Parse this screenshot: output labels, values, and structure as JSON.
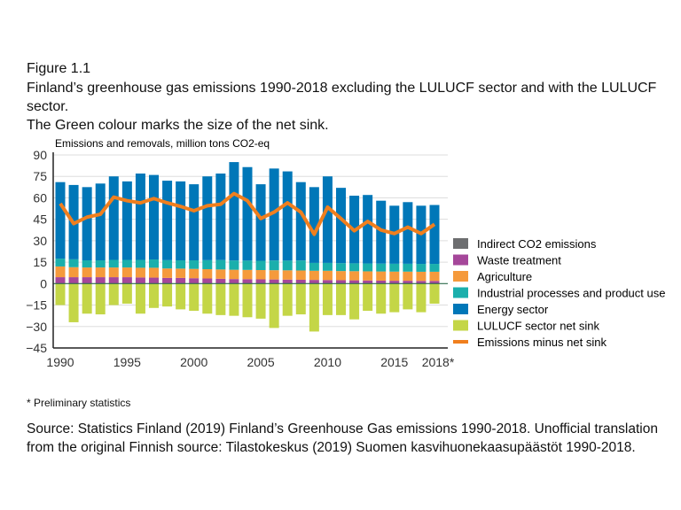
{
  "figure_label": "Figure 1.1",
  "title_line1": "Finland’s greenhouse gas emissions 1990-2018 excluding the LULUCF sector and with the LULUCF sector.",
  "title_line2": "The Green colour marks the size of the net sink.",
  "footnote": "* Preliminary statistics",
  "source": "Source: Statistics Finland (2019) Finland’s Greenhouse Gas emissions 1990-2018. Unofficial translation from the original Finnish source: Tilastokeskus (2019) Suomen kasvihuonekaasupäästöt 1990-2018.",
  "chart_data": {
    "type": "bar",
    "ylabel": "Emissions and removals, million tons CO2-eq",
    "ylim": [
      -45,
      90
    ],
    "yticks": [
      90,
      75,
      60,
      45,
      30,
      15,
      0,
      -15,
      -30,
      -45
    ],
    "ytick_labels": [
      "90",
      "75",
      "60",
      "45",
      "30",
      "15",
      "0",
      "−15",
      "−30",
      "−45"
    ],
    "categories": [
      1990,
      1991,
      1992,
      1993,
      1994,
      1995,
      1996,
      1997,
      1998,
      1999,
      2000,
      2001,
      2002,
      2003,
      2004,
      2005,
      2006,
      2007,
      2008,
      2009,
      2010,
      2011,
      2012,
      2013,
      2014,
      2015,
      2016,
      2017,
      2018
    ],
    "xtick_labels": [
      "1990",
      "1995",
      "2000",
      "2005",
      "2010",
      "2015",
      "2018*"
    ],
    "xtick_index": [
      0,
      5,
      10,
      15,
      20,
      25,
      28
    ],
    "grid": true,
    "legend_position": "right",
    "series": [
      {
        "name": "Waste treatment",
        "color": "#a5479a",
        "values": [
          4.5,
          4.5,
          4.5,
          4.5,
          4.5,
          4.5,
          4.3,
          4.2,
          4,
          4,
          3.8,
          3.6,
          3.4,
          3.2,
          3.1,
          3,
          2.9,
          2.8,
          2.7,
          2.6,
          2.5,
          2.4,
          2.3,
          2.2,
          2.1,
          2.0,
          2.0,
          1.9,
          1.9
        ]
      },
      {
        "name": "Agriculture",
        "color": "#f59a3c",
        "values": [
          7.5,
          7,
          6.8,
          6.8,
          6.8,
          6.8,
          6.8,
          6.9,
          6.6,
          6.5,
          6.5,
          6.5,
          6.5,
          6.5,
          6.5,
          6.5,
          6.5,
          6.5,
          6.5,
          6.4,
          6.5,
          6.4,
          6.4,
          6.4,
          6.4,
          6.4,
          6.4,
          6.4,
          6.4
        ]
      },
      {
        "name": "Industrial processes and product use",
        "color": "#1aafac",
        "values": [
          5.5,
          5.5,
          5,
          5,
          5.3,
          5.3,
          5.5,
          5.8,
          5.8,
          5.8,
          6,
          6.3,
          6.6,
          6.5,
          6.5,
          6.5,
          6.8,
          6.8,
          7,
          5.5,
          5.5,
          5.5,
          5.5,
          5.5,
          5.5,
          5.5,
          5.5,
          5.5,
          5.5
        ]
      },
      {
        "name": "Energy sector",
        "color": "#0077b8",
        "values": [
          53.5,
          52,
          51.2,
          53.7,
          58.4,
          54.9,
          60.4,
          59.1,
          55.6,
          55.2,
          53.2,
          58.6,
          60.5,
          68.8,
          65.4,
          53.5,
          64.3,
          62.4,
          54.8,
          53,
          60.5,
          52.7,
          47.3,
          47.9,
          44,
          40.6,
          43.1,
          40.7,
          41.2
        ]
      },
      {
        "name": "Indirect CO2 emissions",
        "color": "#6d6e70",
        "values": [
          0.5,
          0.5,
          0.5,
          0.5,
          0.5,
          0.5,
          0.5,
          0.5,
          0.5,
          0.5,
          0.5,
          0.5,
          0.5,
          0.5,
          0.5,
          0.5,
          0.5,
          0.5,
          0.5,
          0.5,
          0.5,
          0.5,
          0.5,
          0.5,
          0.5,
          0.5,
          0.5,
          0.5,
          0.5
        ]
      },
      {
        "name": "LULUCF sector net sink",
        "color": "#c4d647",
        "values": [
          -15,
          -27,
          -21,
          -21.5,
          -15,
          -14,
          -21,
          -17,
          -16,
          -18,
          -19,
          -21,
          -22,
          -22.5,
          -23.5,
          -24.5,
          -31,
          -22.5,
          -21.5,
          -33.5,
          -22,
          -22,
          -25,
          -19,
          -21,
          -20,
          -18,
          -20,
          -14
        ]
      },
      {
        "name": "Emissions minus net sink",
        "color": "#f07f1e",
        "type": "line",
        "values": [
          56,
          42,
          46.5,
          48.5,
          60.5,
          58,
          56.5,
          59.5,
          56.5,
          54,
          51,
          54.5,
          55.5,
          63,
          58,
          45.5,
          50,
          56.5,
          50,
          34.5,
          53.5,
          45.5,
          37,
          43.5,
          37.5,
          35,
          39.5,
          35,
          41.5
        ]
      }
    ],
    "legend_order": [
      "Indirect CO2 emissions",
      "Waste treatment",
      "Agriculture",
      "Industrial processes and product use",
      "Energy sector",
      "LULUCF sector net sink",
      "Emissions minus net sink"
    ]
  }
}
